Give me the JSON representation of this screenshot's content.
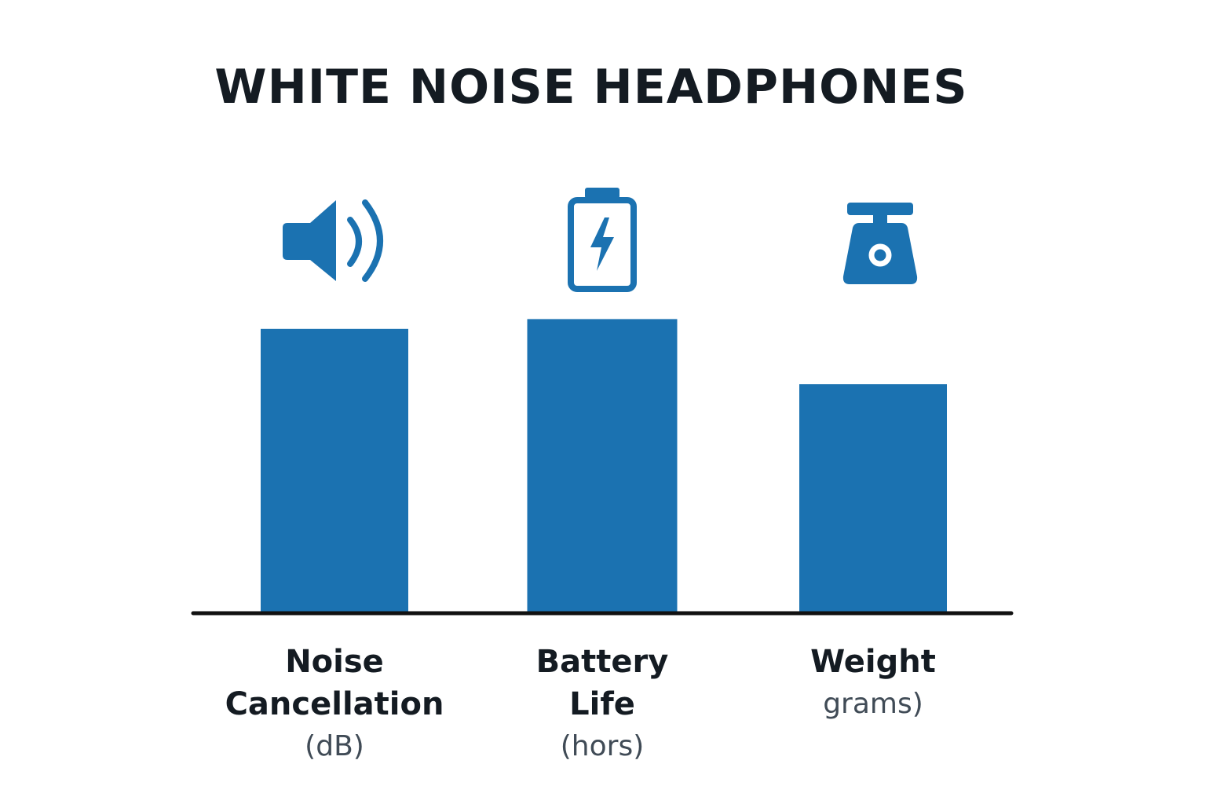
{
  "colors": {
    "bar": "#1b72b1",
    "icon": "#1b72b1",
    "axis": "#111111",
    "title": "#141b22",
    "label": "#141b22",
    "unit": "#404b56"
  },
  "chart_data": {
    "type": "bar",
    "title": "WHITE NOISE HEADPHONES",
    "xlabel": "",
    "ylabel": "",
    "grid": false,
    "legend": "none",
    "ylim": [
      0,
      100
    ],
    "categories": [
      {
        "lines": [
          "Noise",
          "Cancellation"
        ],
        "unit": "(dB)",
        "icon": "speaker-volume-icon",
        "value": 87
      },
      {
        "lines": [
          "Battery",
          "Life"
        ],
        "unit": "(hors)",
        "icon": "battery-charging-icon",
        "value": 90
      },
      {
        "lines": [
          "Weight"
        ],
        "unit": "grams)",
        "icon": "weighing-scale-icon",
        "value": 70
      }
    ]
  }
}
